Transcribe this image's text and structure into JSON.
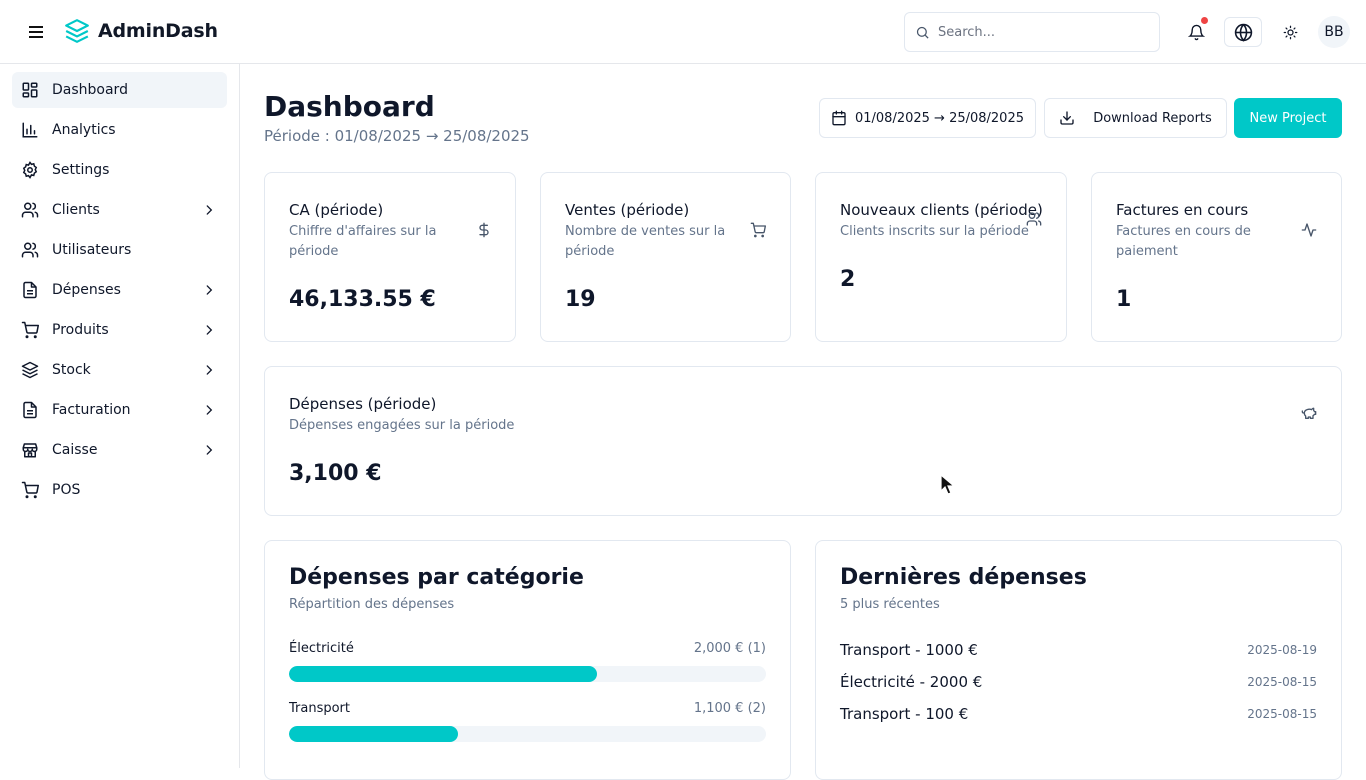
{
  "header": {
    "app_title": "AdminDash",
    "search_placeholder": "Search...",
    "avatar_initials": "BB",
    "accent": "#00c8c8",
    "notification_dot_color": "#ef4444"
  },
  "sidebar": {
    "items": [
      {
        "label": "Dashboard",
        "icon": "layout-dashboard-icon",
        "active": true,
        "has_children": false
      },
      {
        "label": "Analytics",
        "icon": "bar-chart-icon",
        "active": false,
        "has_children": false
      },
      {
        "label": "Settings",
        "icon": "gear-icon",
        "active": false,
        "has_children": false
      },
      {
        "label": "Clients",
        "icon": "users-icon",
        "active": false,
        "has_children": true
      },
      {
        "label": "Utilisateurs",
        "icon": "users-icon",
        "active": false,
        "has_children": false
      },
      {
        "label": "Dépenses",
        "icon": "file-text-icon",
        "active": false,
        "has_children": true
      },
      {
        "label": "Produits",
        "icon": "shopping-cart-icon",
        "active": false,
        "has_children": true
      },
      {
        "label": "Stock",
        "icon": "layers-icon",
        "active": false,
        "has_children": true
      },
      {
        "label": "Facturation",
        "icon": "file-text-icon",
        "active": false,
        "has_children": true
      },
      {
        "label": "Caisse",
        "icon": "store-icon",
        "active": false,
        "has_children": true
      },
      {
        "label": "POS",
        "icon": "shopping-cart-icon",
        "active": false,
        "has_children": false
      }
    ]
  },
  "main": {
    "title": "Dashboard",
    "subtitle": "Période : 01/08/2025 → 25/08/2025",
    "date_range_label": "01/08/2025 → 25/08/2025",
    "download_label": "Download Reports",
    "new_project_label": "New Project",
    "kpis": [
      {
        "title": "CA (période)",
        "desc": "Chiffre d'affaires sur la période",
        "value": "46,133.55 €",
        "icon": "dollar-icon"
      },
      {
        "title": "Ventes (période)",
        "desc": "Nombre de ventes sur la période",
        "value": "19",
        "icon": "shopping-cart-icon"
      },
      {
        "title": "Nouveaux clients (période)",
        "desc": "Clients inscrits sur la période",
        "value": "2",
        "icon": "users-icon"
      },
      {
        "title": "Factures en cours",
        "desc": "Factures en cours de paiement",
        "value": "1",
        "icon": "activity-icon"
      }
    ],
    "expenses_kpi": {
      "title": "Dépenses (période)",
      "desc": "Dépenses engagées sur la période",
      "value": "3,100 €",
      "icon": "piggy-bank-icon"
    },
    "categories_panel": {
      "title": "Dépenses par catégorie",
      "subtitle": "Répartition des dépenses",
      "items": [
        {
          "name": "Électricité",
          "amount": "2,000 € (1)",
          "share": 0.645
        },
        {
          "name": "Transport",
          "amount": "1,100 € (2)",
          "share": 0.355
        }
      ]
    },
    "latest_panel": {
      "title": "Dernières dépenses",
      "subtitle": "5 plus récentes",
      "items": [
        {
          "label": "Transport - 1000 €",
          "date": "2025-08-19"
        },
        {
          "label": "Électricité - 2000 €",
          "date": "2025-08-15"
        },
        {
          "label": "Transport - 100 €",
          "date": "2025-08-15"
        }
      ]
    }
  }
}
